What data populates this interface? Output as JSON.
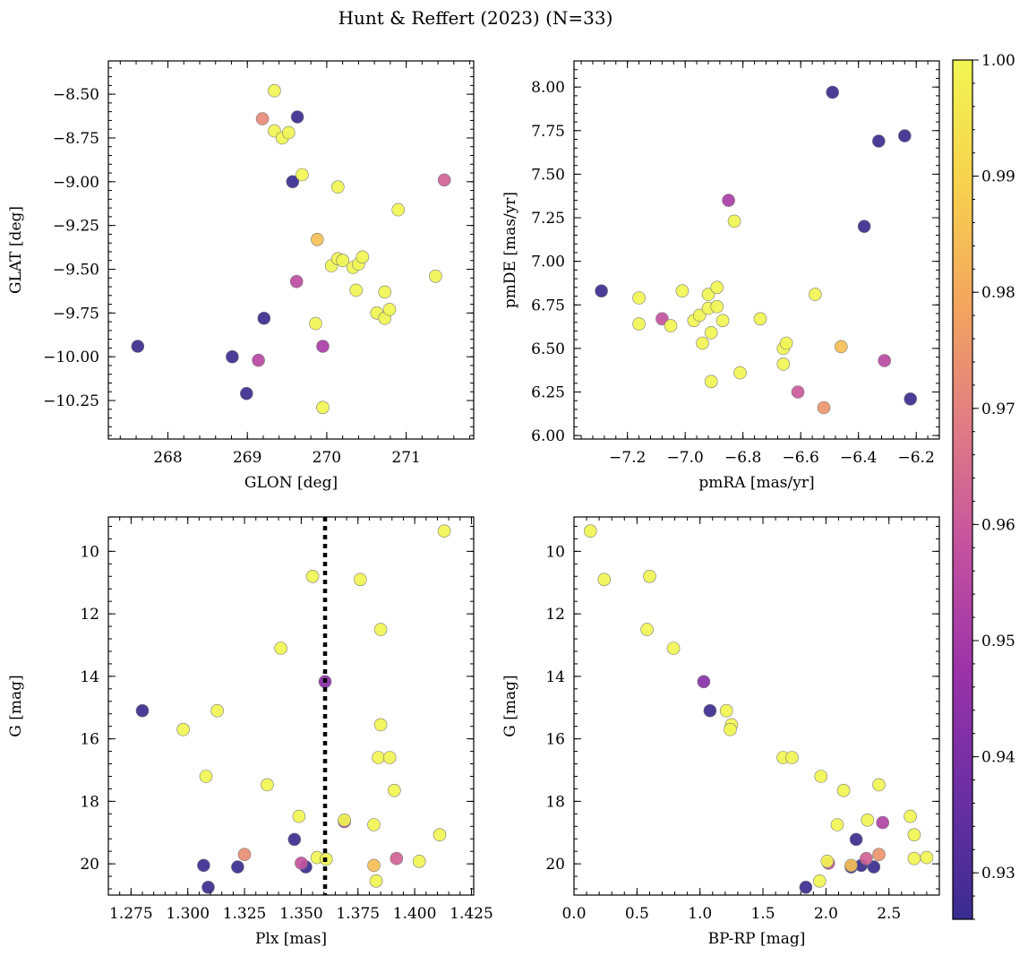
{
  "title": "Hunt & Reffert (2023) (N=33)",
  "colorbar": {
    "min": 0.926,
    "max": 1.0,
    "ticks": [
      0.93,
      0.94,
      0.95,
      0.96,
      0.97,
      0.98,
      0.99,
      1.0
    ],
    "tick_labels": [
      "0.93",
      "0.94",
      "0.95",
      "0.96",
      "0.97",
      "0.98",
      "0.99",
      "1.00"
    ],
    "colormap": "plasma",
    "stops": [
      "#3a2c8f",
      "#6a2fa3",
      "#9a32a8",
      "#c351a0",
      "#e07b85",
      "#f3a55e",
      "#f7d24e",
      "#f1f552"
    ]
  },
  "chart_data": [
    {
      "type": "scatter",
      "name": "glon-glat",
      "xlabel": "GLON [deg]",
      "ylabel": "GLAT [deg]",
      "xlim": [
        267.25,
        271.85
      ],
      "ylim": [
        -10.47,
        -8.31
      ],
      "y_inverted": false,
      "xticks": [
        268,
        269,
        270,
        271
      ],
      "xtick_labels": [
        "268",
        "269",
        "270",
        "271"
      ],
      "yticks": [
        -10.25,
        -10.0,
        -9.75,
        -9.5,
        -9.25,
        -9.0,
        -8.75,
        -8.5
      ],
      "ytick_labels": [
        "−10.25",
        "−10.00",
        "−9.75",
        "−9.50",
        "−9.25",
        "−9.00",
        "−8.75",
        "−8.50"
      ],
      "points": [
        {
          "x": 267.62,
          "y": -9.94,
          "p": 0.926
        },
        {
          "x": 268.81,
          "y": -10.0,
          "p": 0.926
        },
        {
          "x": 268.99,
          "y": -10.21,
          "p": 0.926
        },
        {
          "x": 269.21,
          "y": -9.78,
          "p": 0.926
        },
        {
          "x": 269.57,
          "y": -9.0,
          "p": 0.926
        },
        {
          "x": 269.63,
          "y": -8.63,
          "p": 0.926
        },
        {
          "x": 269.14,
          "y": -10.02,
          "p": 0.955
        },
        {
          "x": 269.95,
          "y": -9.94,
          "p": 0.951
        },
        {
          "x": 269.62,
          "y": -9.57,
          "p": 0.956
        },
        {
          "x": 271.48,
          "y": -8.99,
          "p": 0.962
        },
        {
          "x": 269.19,
          "y": -8.64,
          "p": 0.972
        },
        {
          "x": 269.88,
          "y": -9.33,
          "p": 0.985
        },
        {
          "x": 269.34,
          "y": -8.48,
          "p": 1.0
        },
        {
          "x": 269.34,
          "y": -8.71,
          "p": 1.0
        },
        {
          "x": 269.44,
          "y": -8.75,
          "p": 1.0
        },
        {
          "x": 269.52,
          "y": -8.72,
          "p": 1.0
        },
        {
          "x": 269.69,
          "y": -8.96,
          "p": 1.0
        },
        {
          "x": 270.14,
          "y": -9.03,
          "p": 1.0
        },
        {
          "x": 270.9,
          "y": -9.16,
          "p": 1.0
        },
        {
          "x": 270.06,
          "y": -9.48,
          "p": 1.0
        },
        {
          "x": 270.14,
          "y": -9.44,
          "p": 1.0
        },
        {
          "x": 270.2,
          "y": -9.45,
          "p": 1.0
        },
        {
          "x": 270.33,
          "y": -9.49,
          "p": 1.0
        },
        {
          "x": 270.4,
          "y": -9.47,
          "p": 1.0
        },
        {
          "x": 270.45,
          "y": -9.43,
          "p": 1.0
        },
        {
          "x": 270.37,
          "y": -9.62,
          "p": 1.0
        },
        {
          "x": 271.37,
          "y": -9.54,
          "p": 1.0
        },
        {
          "x": 270.73,
          "y": -9.63,
          "p": 1.0
        },
        {
          "x": 270.63,
          "y": -9.75,
          "p": 1.0
        },
        {
          "x": 270.73,
          "y": -9.78,
          "p": 1.0
        },
        {
          "x": 270.79,
          "y": -9.73,
          "p": 1.0
        },
        {
          "x": 269.86,
          "y": -9.81,
          "p": 1.0
        },
        {
          "x": 269.95,
          "y": -10.29,
          "p": 1.0
        }
      ]
    },
    {
      "type": "scatter",
      "name": "pmra-pmde",
      "xlabel": "pmRA [mas/yr]",
      "ylabel": "pmDE [mas/yr]",
      "xlim": [
        -7.385,
        -6.12
      ],
      "ylim": [
        5.98,
        8.15
      ],
      "y_inverted": false,
      "xticks": [
        -7.2,
        -7.0,
        -6.8,
        -6.6,
        -6.4,
        -6.2
      ],
      "xtick_labels": [
        "−7.2",
        "−7.0",
        "−6.8",
        "−6.6",
        "−6.4",
        "−6.2"
      ],
      "yticks": [
        6.0,
        6.25,
        6.5,
        6.75,
        7.0,
        7.25,
        7.5,
        7.75,
        8.0
      ],
      "ytick_labels": [
        "6.00",
        "6.25",
        "6.50",
        "6.75",
        "7.00",
        "7.25",
        "7.50",
        "7.75",
        "8.00"
      ],
      "points": [
        {
          "x": -7.29,
          "y": 6.83,
          "p": 0.926
        },
        {
          "x": -6.49,
          "y": 7.97,
          "p": 0.926
        },
        {
          "x": -6.33,
          "y": 7.69,
          "p": 0.926
        },
        {
          "x": -6.24,
          "y": 7.72,
          "p": 0.926
        },
        {
          "x": -6.38,
          "y": 7.2,
          "p": 0.926
        },
        {
          "x": -6.22,
          "y": 6.21,
          "p": 0.926
        },
        {
          "x": -6.85,
          "y": 7.35,
          "p": 0.951
        },
        {
          "x": -7.08,
          "y": 6.67,
          "p": 0.958
        },
        {
          "x": -6.31,
          "y": 6.43,
          "p": 0.955
        },
        {
          "x": -6.61,
          "y": 6.25,
          "p": 0.96
        },
        {
          "x": -6.52,
          "y": 6.16,
          "p": 0.975
        },
        {
          "x": -6.46,
          "y": 6.51,
          "p": 0.985
        },
        {
          "x": -7.16,
          "y": 6.79,
          "p": 1.0
        },
        {
          "x": -7.16,
          "y": 6.64,
          "p": 1.0
        },
        {
          "x": -7.01,
          "y": 6.83,
          "p": 1.0
        },
        {
          "x": -7.05,
          "y": 6.63,
          "p": 1.0
        },
        {
          "x": -6.97,
          "y": 6.66,
          "p": 1.0
        },
        {
          "x": -6.95,
          "y": 6.69,
          "p": 1.0
        },
        {
          "x": -6.92,
          "y": 6.81,
          "p": 1.0
        },
        {
          "x": -6.89,
          "y": 6.85,
          "p": 1.0
        },
        {
          "x": -6.92,
          "y": 6.73,
          "p": 1.0
        },
        {
          "x": -6.89,
          "y": 6.74,
          "p": 1.0
        },
        {
          "x": -6.87,
          "y": 6.66,
          "p": 1.0
        },
        {
          "x": -6.94,
          "y": 6.53,
          "p": 1.0
        },
        {
          "x": -6.91,
          "y": 6.59,
          "p": 1.0
        },
        {
          "x": -6.91,
          "y": 6.31,
          "p": 1.0
        },
        {
          "x": -6.83,
          "y": 7.23,
          "p": 1.0
        },
        {
          "x": -6.81,
          "y": 6.36,
          "p": 1.0
        },
        {
          "x": -6.74,
          "y": 6.67,
          "p": 1.0
        },
        {
          "x": -6.66,
          "y": 6.5,
          "p": 1.0
        },
        {
          "x": -6.65,
          "y": 6.53,
          "p": 1.0
        },
        {
          "x": -6.66,
          "y": 6.41,
          "p": 1.0
        },
        {
          "x": -6.55,
          "y": 6.81,
          "p": 1.0
        }
      ]
    },
    {
      "type": "scatter",
      "name": "plx-g",
      "xlabel": "Plx [mas]",
      "ylabel": "G [mag]",
      "xlim": [
        1.265,
        1.426
      ],
      "ylim": [
        21.0,
        8.9
      ],
      "y_inverted": true,
      "xticks": [
        1.275,
        1.3,
        1.325,
        1.35,
        1.375,
        1.4,
        1.425
      ],
      "xtick_labels": [
        "1.275",
        "1.300",
        "1.325",
        "1.350",
        "1.375",
        "1.400",
        "1.425"
      ],
      "yticks": [
        10,
        12,
        14,
        16,
        18,
        20
      ],
      "ytick_labels": [
        "10",
        "12",
        "14",
        "16",
        "18",
        "20"
      ],
      "vline": 1.3605,
      "points": [
        {
          "x": 1.28,
          "y": 15.1,
          "p": 0.926
        },
        {
          "x": 1.307,
          "y": 20.05,
          "p": 0.926
        },
        {
          "x": 1.309,
          "y": 20.75,
          "p": 0.926
        },
        {
          "x": 1.322,
          "y": 20.1,
          "p": 0.926
        },
        {
          "x": 1.347,
          "y": 19.22,
          "p": 0.926
        },
        {
          "x": 1.352,
          "y": 20.1,
          "p": 0.926
        },
        {
          "x": 1.3605,
          "y": 14.17,
          "p": 0.943
        },
        {
          "x": 1.369,
          "y": 18.65,
          "p": 0.955
        },
        {
          "x": 1.35,
          "y": 19.98,
          "p": 0.958
        },
        {
          "x": 1.392,
          "y": 19.83,
          "p": 0.962
        },
        {
          "x": 1.325,
          "y": 19.7,
          "p": 0.973
        },
        {
          "x": 1.382,
          "y": 20.05,
          "p": 0.985
        },
        {
          "x": 1.413,
          "y": 9.35,
          "p": 1.0
        },
        {
          "x": 1.355,
          "y": 10.8,
          "p": 1.0
        },
        {
          "x": 1.376,
          "y": 10.9,
          "p": 1.0
        },
        {
          "x": 1.385,
          "y": 12.5,
          "p": 1.0
        },
        {
          "x": 1.341,
          "y": 13.1,
          "p": 1.0
        },
        {
          "x": 1.385,
          "y": 15.55,
          "p": 1.0
        },
        {
          "x": 1.298,
          "y": 15.7,
          "p": 1.0
        },
        {
          "x": 1.313,
          "y": 15.1,
          "p": 1.0
        },
        {
          "x": 1.384,
          "y": 16.6,
          "p": 1.0
        },
        {
          "x": 1.389,
          "y": 16.6,
          "p": 1.0
        },
        {
          "x": 1.308,
          "y": 17.2,
          "p": 1.0
        },
        {
          "x": 1.391,
          "y": 17.65,
          "p": 1.0
        },
        {
          "x": 1.335,
          "y": 17.47,
          "p": 1.0
        },
        {
          "x": 1.349,
          "y": 18.48,
          "p": 1.0
        },
        {
          "x": 1.369,
          "y": 18.6,
          "p": 1.0
        },
        {
          "x": 1.382,
          "y": 18.75,
          "p": 1.0
        },
        {
          "x": 1.411,
          "y": 19.07,
          "p": 1.0
        },
        {
          "x": 1.357,
          "y": 19.8,
          "p": 1.0
        },
        {
          "x": 1.361,
          "y": 19.85,
          "p": 1.0
        },
        {
          "x": 1.402,
          "y": 19.92,
          "p": 1.0
        },
        {
          "x": 1.383,
          "y": 20.55,
          "p": 1.0
        }
      ]
    },
    {
      "type": "scatter",
      "name": "bprp-g",
      "xlabel": "BP-RP [mag]",
      "ylabel": "G [mag]",
      "xlim": [
        0.0,
        2.9
      ],
      "ylim": [
        21.0,
        8.9
      ],
      "y_inverted": true,
      "xticks": [
        0.0,
        0.5,
        1.0,
        1.5,
        2.0,
        2.5
      ],
      "xtick_labels": [
        "0.0",
        "0.5",
        "1.0",
        "1.5",
        "2.0",
        "2.5"
      ],
      "yticks": [
        10,
        12,
        14,
        16,
        18,
        20
      ],
      "ytick_labels": [
        "10",
        "12",
        "14",
        "16",
        "18",
        "20"
      ],
      "points": [
        {
          "x": 1.08,
          "y": 15.1,
          "p": 0.926
        },
        {
          "x": 1.84,
          "y": 20.75,
          "p": 0.926
        },
        {
          "x": 2.2,
          "y": 20.1,
          "p": 0.926
        },
        {
          "x": 2.24,
          "y": 19.22,
          "p": 0.926
        },
        {
          "x": 2.28,
          "y": 20.05,
          "p": 0.926
        },
        {
          "x": 2.38,
          "y": 20.1,
          "p": 0.926
        },
        {
          "x": 1.03,
          "y": 14.17,
          "p": 0.943
        },
        {
          "x": 2.45,
          "y": 18.68,
          "p": 0.953
        },
        {
          "x": 2.02,
          "y": 19.98,
          "p": 0.958
        },
        {
          "x": 2.32,
          "y": 19.83,
          "p": 0.962
        },
        {
          "x": 2.42,
          "y": 19.7,
          "p": 0.975
        },
        {
          "x": 2.2,
          "y": 20.05,
          "p": 0.985
        },
        {
          "x": 0.13,
          "y": 9.35,
          "p": 1.0
        },
        {
          "x": 0.24,
          "y": 10.9,
          "p": 1.0
        },
        {
          "x": 0.6,
          "y": 10.8,
          "p": 1.0
        },
        {
          "x": 0.58,
          "y": 12.5,
          "p": 1.0
        },
        {
          "x": 0.79,
          "y": 13.1,
          "p": 1.0
        },
        {
          "x": 1.21,
          "y": 15.1,
          "p": 1.0
        },
        {
          "x": 1.25,
          "y": 15.55,
          "p": 1.0
        },
        {
          "x": 1.24,
          "y": 15.7,
          "p": 1.0
        },
        {
          "x": 1.66,
          "y": 16.6,
          "p": 1.0
        },
        {
          "x": 1.73,
          "y": 16.6,
          "p": 1.0
        },
        {
          "x": 1.96,
          "y": 17.2,
          "p": 1.0
        },
        {
          "x": 2.14,
          "y": 17.65,
          "p": 1.0
        },
        {
          "x": 2.42,
          "y": 17.47,
          "p": 1.0
        },
        {
          "x": 2.67,
          "y": 18.48,
          "p": 1.0
        },
        {
          "x": 2.33,
          "y": 18.6,
          "p": 1.0
        },
        {
          "x": 2.09,
          "y": 18.75,
          "p": 1.0
        },
        {
          "x": 2.7,
          "y": 19.07,
          "p": 1.0
        },
        {
          "x": 2.7,
          "y": 19.83,
          "p": 1.0
        },
        {
          "x": 2.8,
          "y": 19.8,
          "p": 1.0
        },
        {
          "x": 2.01,
          "y": 19.92,
          "p": 1.0
        },
        {
          "x": 1.95,
          "y": 20.55,
          "p": 1.0
        }
      ]
    }
  ]
}
